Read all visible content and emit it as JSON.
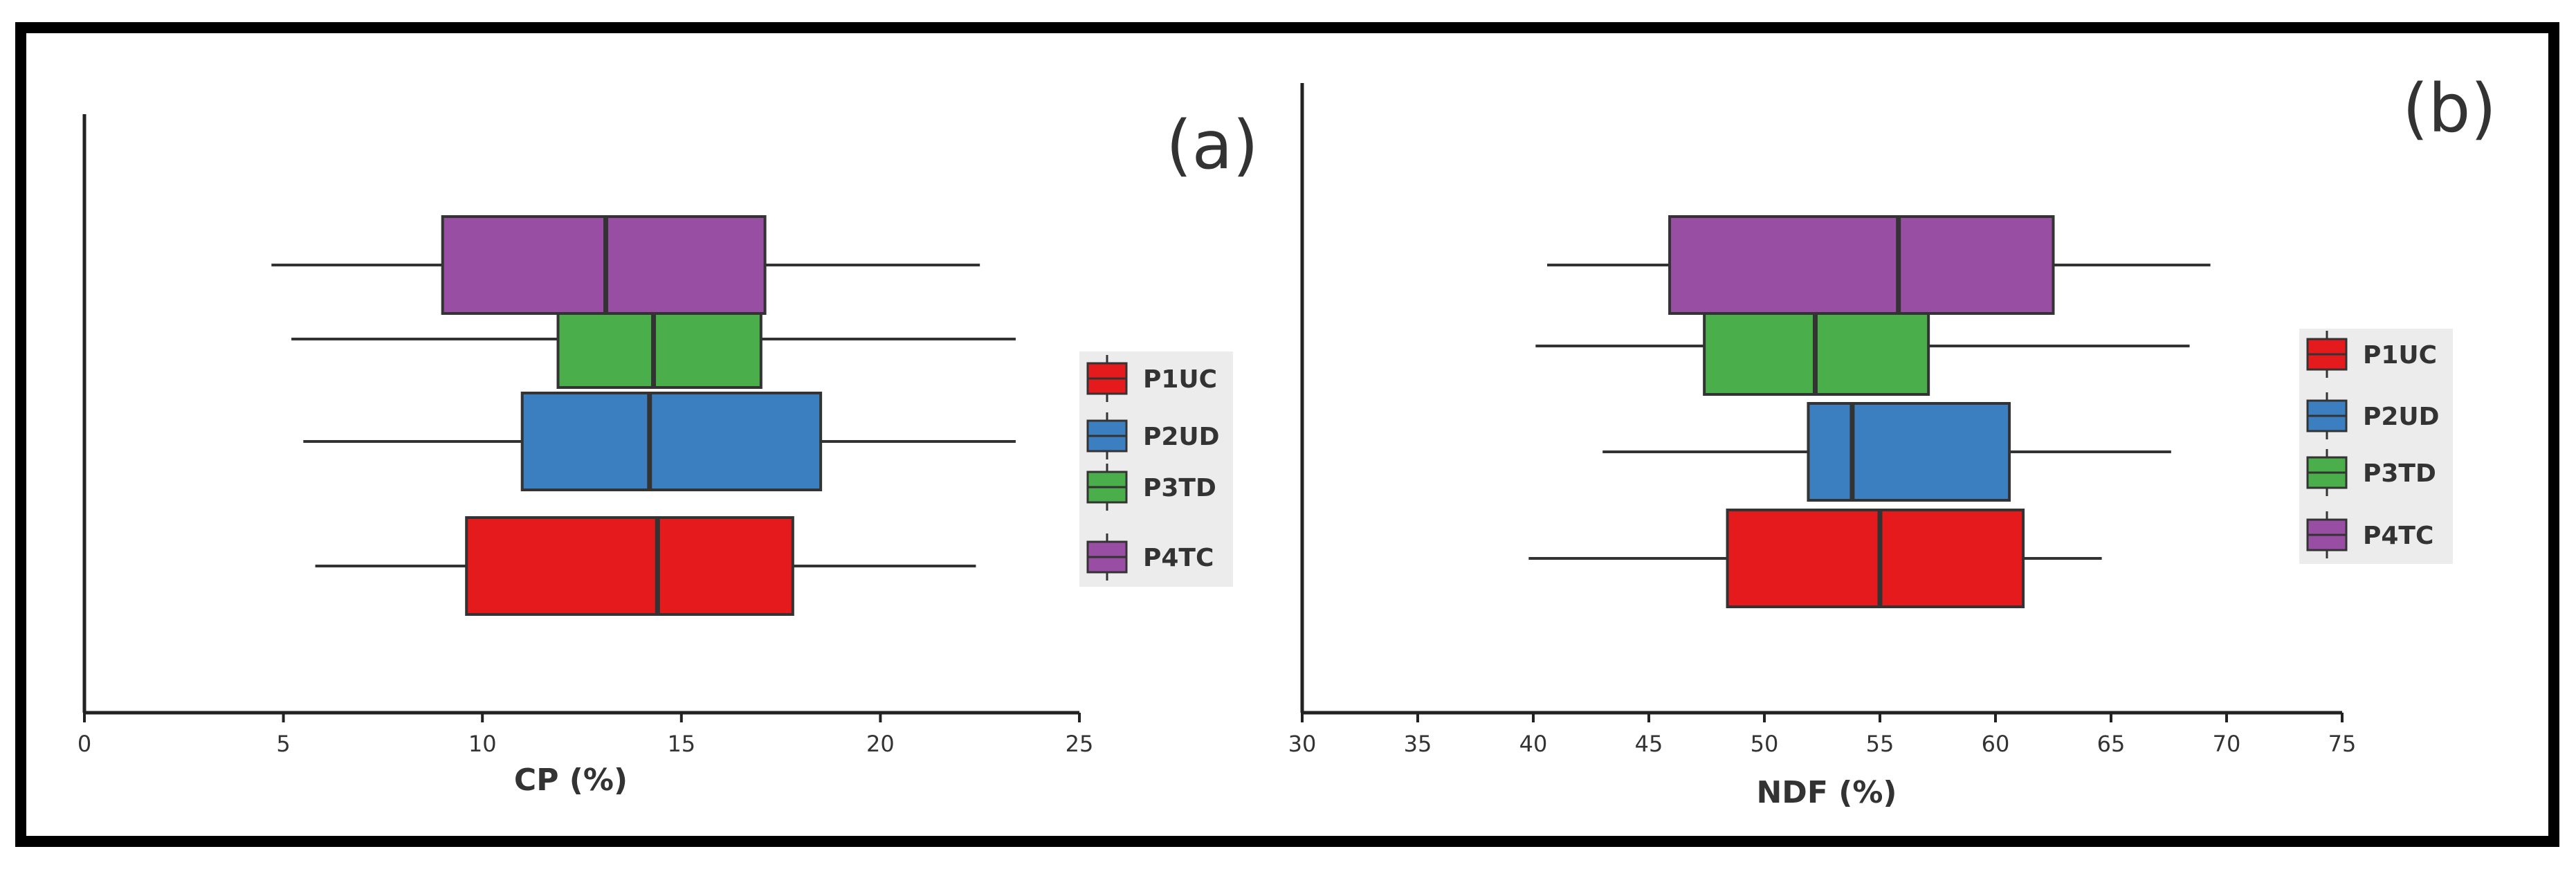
{
  "colors": {
    "P1UC": "#e41a1c",
    "P2UD": "#3b7fc0",
    "P3TD": "#4aae4a",
    "P4TC": "#984ea3",
    "frame": "#000000",
    "legend_bg": "#ececec"
  },
  "chart_data": [
    {
      "type": "boxplot",
      "orientation": "horizontal",
      "panel_label": "(a)",
      "xlabel": "CP (%)",
      "xlim": [
        0,
        25
      ],
      "xticks": [
        0,
        5,
        10,
        15,
        20,
        25
      ],
      "legend": [
        "P1UC",
        "P2UD",
        "P3TD",
        "P4TC"
      ],
      "legend_placement": "right",
      "grid": false,
      "series": [
        {
          "name": "P1UC",
          "min": 5.8,
          "q1": 9.6,
          "median": 14.4,
          "q3": 17.8,
          "max": 22.4
        },
        {
          "name": "P2UD",
          "min": 5.5,
          "q1": 11.0,
          "median": 14.2,
          "q3": 18.5,
          "max": 23.4
        },
        {
          "name": "P3TD",
          "min": 5.2,
          "q1": 11.9,
          "median": 14.3,
          "q3": 17.0,
          "max": 23.4
        },
        {
          "name": "P4TC",
          "min": 4.7,
          "q1": 9.0,
          "median": 13.1,
          "q3": 17.1,
          "max": 22.5
        }
      ]
    },
    {
      "type": "boxplot",
      "orientation": "horizontal",
      "panel_label": "(b)",
      "xlabel": "NDF (%)",
      "xlim": [
        30,
        75
      ],
      "xticks": [
        30,
        35,
        40,
        45,
        50,
        55,
        60,
        65,
        70,
        75
      ],
      "legend": [
        "P1UC",
        "P2UD",
        "P3TD",
        "P4TC"
      ],
      "legend_placement": "right",
      "grid": false,
      "series": [
        {
          "name": "P1UC",
          "min": 39.8,
          "q1": 48.4,
          "median": 55.0,
          "q3": 61.2,
          "max": 64.6
        },
        {
          "name": "P2UD",
          "min": 43.0,
          "q1": 51.9,
          "median": 53.8,
          "q3": 60.6,
          "max": 67.6
        },
        {
          "name": "P3TD",
          "min": 40.1,
          "q1": 47.4,
          "median": 52.2,
          "q3": 57.1,
          "max": 68.4
        },
        {
          "name": "P4TC",
          "min": 40.6,
          "q1": 45.9,
          "median": 55.8,
          "q3": 62.5,
          "max": 69.3
        }
      ]
    }
  ]
}
